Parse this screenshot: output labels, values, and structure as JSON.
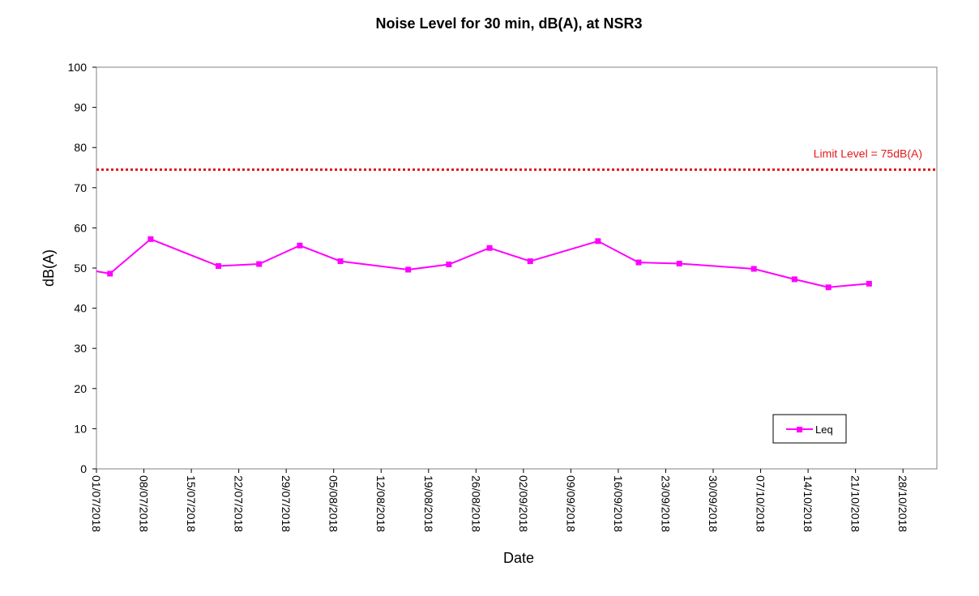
{
  "chart_data": {
    "type": "line",
    "title": "Noise Level for 30 min, dB(A), at NSR3",
    "xlabel": "Date",
    "ylabel": "dB(A)",
    "ylim": [
      0,
      100
    ],
    "yticks": [
      0,
      10,
      20,
      30,
      40,
      50,
      60,
      70,
      80,
      90,
      100
    ],
    "xlim": [
      "2018-07-01",
      "2018-11-02"
    ],
    "xticks": [
      "2018-07-01",
      "2018-07-08",
      "2018-07-15",
      "2018-07-22",
      "2018-07-29",
      "2018-08-05",
      "2018-08-12",
      "2018-08-19",
      "2018-08-26",
      "2018-09-02",
      "2018-09-09",
      "2018-09-16",
      "2018-09-23",
      "2018-09-30",
      "2018-10-07",
      "2018-10-14",
      "2018-10-21",
      "2018-10-28"
    ],
    "xtick_labels": [
      "01/07/2018",
      "08/07/2018",
      "15/07/2018",
      "22/07/2018",
      "29/07/2018",
      "05/08/2018",
      "12/08/2018",
      "19/08/2018",
      "26/08/2018",
      "02/09/2018",
      "09/09/2018",
      "16/09/2018",
      "23/09/2018",
      "30/09/2018",
      "07/10/2018",
      "14/10/2018",
      "21/10/2018",
      "28/10/2018"
    ],
    "series": [
      {
        "name": "Leq",
        "color": "#ff00ff",
        "marker": "square",
        "x": [
          "2018-07-01",
          "2018-07-03",
          "2018-07-09",
          "2018-07-19",
          "2018-07-25",
          "2018-07-31",
          "2018-08-06",
          "2018-08-16",
          "2018-08-22",
          "2018-08-28",
          "2018-09-03",
          "2018-09-13",
          "2018-09-19",
          "2018-09-25",
          "2018-10-06",
          "2018-10-12",
          "2018-10-17",
          "2018-10-23"
        ],
        "values": [
          49.2,
          48.6,
          57.2,
          50.5,
          51.0,
          55.6,
          51.7,
          49.6,
          50.9,
          55.0,
          51.7,
          56.7,
          51.4,
          51.1,
          49.8,
          47.2,
          45.2,
          46.1
        ]
      }
    ],
    "reference_line": {
      "label": "Limit Level = 75dB(A)",
      "value": 74.5,
      "color": "#e31a1c",
      "style": "dotted"
    },
    "legend_position": "bottom-right",
    "grid": false
  }
}
